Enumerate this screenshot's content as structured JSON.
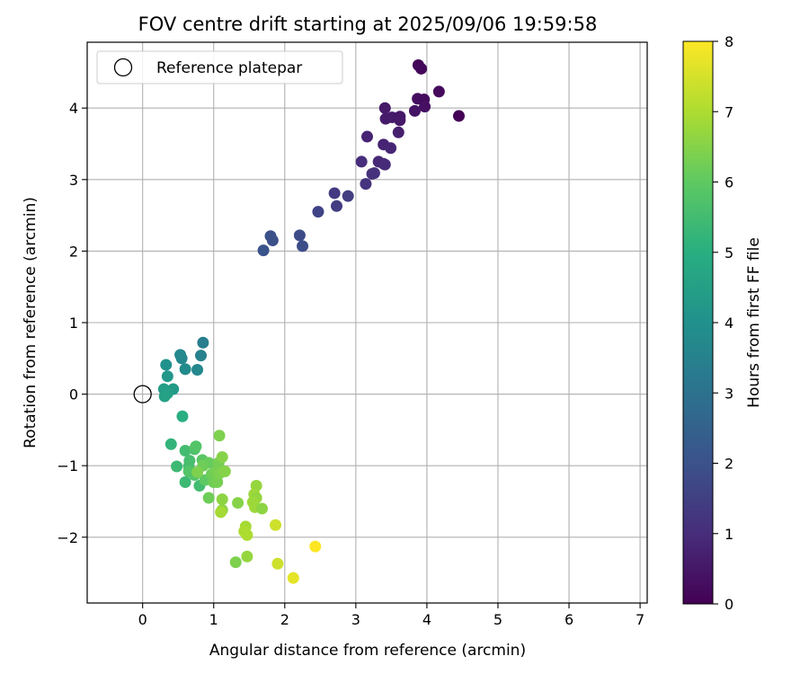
{
  "chart_data": {
    "type": "scatter",
    "title": "FOV centre drift starting at 2025/09/06 19:59:58",
    "xlabel": "Angular distance from reference (arcmin)",
    "ylabel": "Rotation from reference (arcmin)",
    "xlim": [
      -0.78,
      7.1
    ],
    "ylim": [
      -2.92,
      4.92
    ],
    "xticks": [
      0,
      1,
      2,
      3,
      4,
      5,
      6,
      7
    ],
    "yticks": [
      -2,
      -1,
      0,
      1,
      2,
      3,
      4
    ],
    "grid": true,
    "colormap": "viridis",
    "legend": {
      "placement": "top-left",
      "entries": [
        "Reference platepar"
      ]
    },
    "reference_point": {
      "name": "Reference platepar",
      "x": 0,
      "y": 0
    },
    "colorbar": {
      "label": "Hours from first FF file",
      "min": 0,
      "max": 8,
      "ticks": [
        0,
        1,
        2,
        3,
        4,
        5,
        6,
        7,
        8
      ]
    },
    "points": [
      [
        3.88,
        4.6,
        0.1
      ],
      [
        3.92,
        4.55,
        0.15
      ],
      [
        4.17,
        4.23,
        0.2
      ],
      [
        3.87,
        4.13,
        0.3
      ],
      [
        3.96,
        4.12,
        0.25
      ],
      [
        3.97,
        4.02,
        0.35
      ],
      [
        3.83,
        3.96,
        0.4
      ],
      [
        4.45,
        3.89,
        0.05
      ],
      [
        3.41,
        4.0,
        0.55
      ],
      [
        3.42,
        3.85,
        0.6
      ],
      [
        3.51,
        3.87,
        0.6
      ],
      [
        3.62,
        3.88,
        0.5
      ],
      [
        3.62,
        3.83,
        0.55
      ],
      [
        3.6,
        3.66,
        0.7
      ],
      [
        3.16,
        3.6,
        0.8
      ],
      [
        3.39,
        3.49,
        0.8
      ],
      [
        3.49,
        3.44,
        0.85
      ],
      [
        3.32,
        3.25,
        0.9
      ],
      [
        3.39,
        3.22,
        0.85
      ],
      [
        3.41,
        3.21,
        0.95
      ],
      [
        3.08,
        3.25,
        1.0
      ],
      [
        3.23,
        3.08,
        1.1
      ],
      [
        3.26,
        3.09,
        1.1
      ],
      [
        3.14,
        2.94,
        1.2
      ],
      [
        2.7,
        2.81,
        1.35
      ],
      [
        2.89,
        2.77,
        1.45
      ],
      [
        2.73,
        2.63,
        1.4
      ],
      [
        2.47,
        2.55,
        1.6
      ],
      [
        1.8,
        2.21,
        1.95
      ],
      [
        1.83,
        2.15,
        1.95
      ],
      [
        2.21,
        2.22,
        1.85
      ],
      [
        2.25,
        2.07,
        1.9
      ],
      [
        1.7,
        2.01,
        2.05
      ],
      [
        0.85,
        0.72,
        3.4
      ],
      [
        0.82,
        0.54,
        3.5
      ],
      [
        0.53,
        0.55,
        3.7
      ],
      [
        0.55,
        0.5,
        3.7
      ],
      [
        0.6,
        0.35,
        3.8
      ],
      [
        0.77,
        0.34,
        3.7
      ],
      [
        0.33,
        0.41,
        4.0
      ],
      [
        0.35,
        0.25,
        4.2
      ],
      [
        0.3,
        0.07,
        4.4
      ],
      [
        0.43,
        0.07,
        4.3
      ],
      [
        0.35,
        0.01,
        4.5
      ],
      [
        0.31,
        -0.03,
        4.6
      ],
      [
        0.56,
        -0.31,
        5.0
      ],
      [
        0.4,
        -0.7,
        5.2
      ],
      [
        0.48,
        -1.01,
        5.4
      ],
      [
        0.6,
        -0.79,
        5.5
      ],
      [
        0.73,
        -0.77,
        5.7
      ],
      [
        0.75,
        -0.73,
        5.8
      ],
      [
        0.66,
        -0.93,
        5.6
      ],
      [
        0.65,
        -1.01,
        5.6
      ],
      [
        0.6,
        -1.23,
        5.4
      ],
      [
        0.65,
        -1.08,
        5.8
      ],
      [
        0.73,
        -1.13,
        5.8
      ],
      [
        0.8,
        -1.28,
        5.5
      ],
      [
        0.84,
        -0.92,
        5.9
      ],
      [
        0.88,
        -1.2,
        6.0
      ],
      [
        0.93,
        -0.96,
        6.1
      ],
      [
        0.85,
        -1.0,
        6.2
      ],
      [
        0.77,
        -1.09,
        6.4
      ],
      [
        0.97,
        -1.12,
        6.2
      ],
      [
        1.03,
        -1.08,
        6.3
      ],
      [
        1.0,
        -1.23,
        6.2
      ],
      [
        1.05,
        -1.23,
        6.3
      ],
      [
        1.07,
        -0.96,
        6.3
      ],
      [
        1.08,
        -1.11,
        6.4
      ],
      [
        1.08,
        -0.58,
        6.4
      ],
      [
        1.12,
        -0.88,
        6.5
      ],
      [
        1.16,
        -1.08,
        6.5
      ],
      [
        1.12,
        -1.47,
        6.6
      ],
      [
        0.93,
        -1.45,
        6.2
      ],
      [
        1.12,
        -1.62,
        6.6
      ],
      [
        1.1,
        -1.65,
        6.9
      ],
      [
        1.34,
        -1.52,
        6.5
      ],
      [
        1.6,
        -1.28,
        6.7
      ],
      [
        1.57,
        -1.4,
        6.8
      ],
      [
        1.6,
        -1.45,
        6.7
      ],
      [
        1.55,
        -1.51,
        6.8
      ],
      [
        1.58,
        -1.58,
        6.8
      ],
      [
        1.68,
        -1.6,
        6.6
      ],
      [
        1.45,
        -1.85,
        6.9
      ],
      [
        1.43,
        -1.92,
        7.0
      ],
      [
        1.47,
        -1.97,
        7.0
      ],
      [
        1.47,
        -2.27,
        6.7
      ],
      [
        1.31,
        -2.35,
        6.4
      ],
      [
        1.87,
        -1.83,
        7.4
      ],
      [
        1.9,
        -2.37,
        7.4
      ],
      [
        2.12,
        -2.57,
        7.7
      ],
      [
        2.43,
        -2.13,
        8.0
      ]
    ]
  }
}
